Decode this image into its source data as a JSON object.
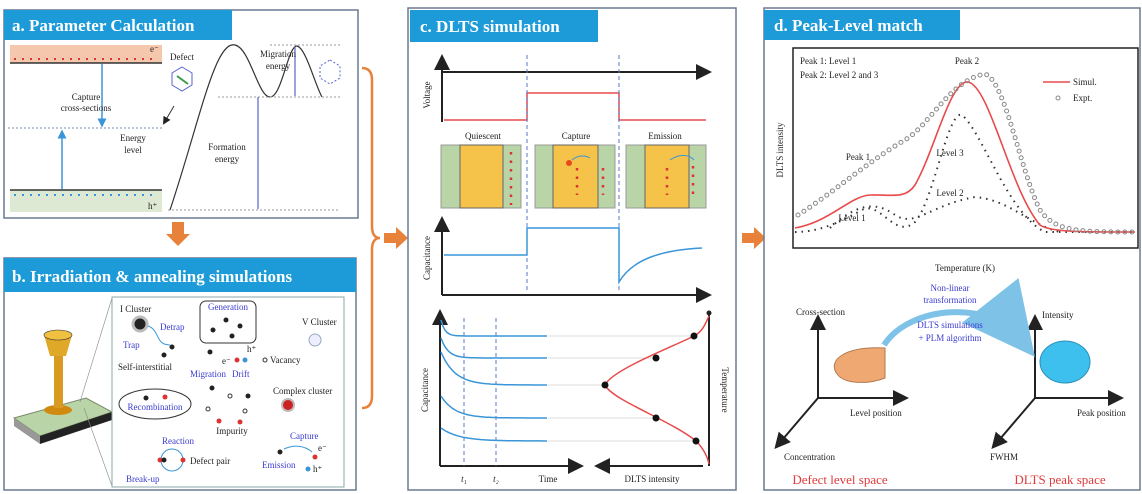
{
  "colors": {
    "title_bar": "#1d9bd8",
    "accent_orange": "#e8823a",
    "simul_red": "#e84a4a",
    "capacitance_blue": "#3a96d8",
    "text_blue": "#3a3ad0",
    "space_label_red": "#e03a3a"
  },
  "panel_a": {
    "title": "a. Parameter Calculation",
    "electron": "e⁻",
    "hole": "h⁺",
    "capture_1": "Capture",
    "capture_2": "cross-sections",
    "energy_level_1": "Energy",
    "energy_level_2": "level",
    "defect": "Defect",
    "migration_1": "Migration",
    "migration_2": "energy",
    "formation_1": "Formation",
    "formation_2": "energy"
  },
  "panel_b": {
    "title": "b. Irradiation & annealing simulations",
    "i_cluster": "I Cluster",
    "detrap": "Detrap",
    "trap": "Trap",
    "self_interstitial": "Self-interstitial",
    "generation": "Generation",
    "v_cluster": "V Cluster",
    "vacancy": "Vacancy",
    "migration": "Migration",
    "drift": "Drift",
    "hole": "h⁺",
    "electron": "e⁻",
    "complex_cluster": "Complex cluster",
    "recombination": "Recombination",
    "impurity": "Impurity",
    "reaction": "Reaction",
    "defect_pair": "Defect pair",
    "break_up": "Break-up",
    "capture": "Capture",
    "emission": "Emission"
  },
  "panel_c": {
    "title": "c. DLTS simulation",
    "voltage": "Voltage",
    "quiescent": "Quiescent",
    "capture": "Capture",
    "emission": "Emission",
    "capacitance": "Capacitance",
    "capacitance2": "Capacitance",
    "t1": "t₁",
    "t2": "t₂",
    "time": "Time",
    "dlts_intensity": "DLTS intensity",
    "temperature": "Temperature"
  },
  "panel_d": {
    "title": "d. Peak-Level match",
    "note_1": "Peak 1: Level 1",
    "note_2": "Peak 2: Level 2 and 3",
    "peak_1": "Peak 1",
    "peak_2": "Peak 2",
    "level_1": "Level 1",
    "level_2": "Level 2",
    "level_3": "Level 3",
    "legend_simul": "Simul.",
    "legend_expt": "Expt.",
    "ylabel": "DLTS intensity",
    "xlabel": "Temperature (K)",
    "nonlinear_1": "Non-linear",
    "nonlinear_2": "transformation",
    "method_1": "DLTS simulations",
    "method_2": "+ PLM algorithm",
    "left_space": {
      "y_axis": "Cross-section",
      "x_axis": "Level position",
      "z_axis": "Concentration",
      "name": "Defect level space"
    },
    "right_space": {
      "y_axis": "Intensity",
      "x_axis": "Peak position",
      "z_axis": "FWHM",
      "name": "DLTS peak space"
    }
  }
}
